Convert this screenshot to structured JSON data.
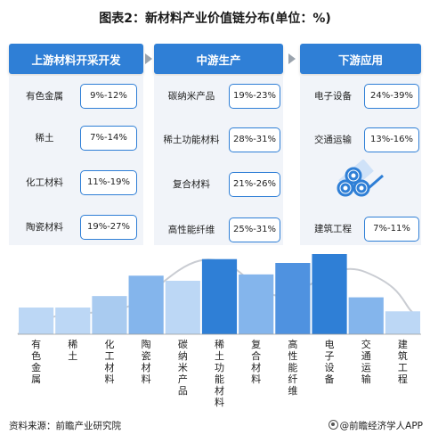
{
  "title": "图表2：新材料产业价值链分布(单位：%)",
  "stages": [
    {
      "label": "上游材料开采开发"
    },
    {
      "label": "中游生产"
    },
    {
      "label": "下游应用"
    }
  ],
  "upstream": [
    {
      "name": "有色金属",
      "value": "9%-12%"
    },
    {
      "name": "稀土",
      "value": "7%-14%"
    },
    {
      "name": "化工材料",
      "value": "11%-19%"
    },
    {
      "name": "陶瓷材料",
      "value": "19%-27%"
    }
  ],
  "midstream": [
    {
      "name": "碳纳米产品",
      "value": "19%-23%"
    },
    {
      "name": "稀土功能材料",
      "value": "28%-31%"
    },
    {
      "name": "复合材料",
      "value": "21%-26%"
    },
    {
      "name": "高性能纤维",
      "value": "25%-31%"
    }
  ],
  "downstream": [
    {
      "name": "电子设备",
      "value": "24%-39%"
    },
    {
      "name": "交通运输",
      "value": "13%-16%"
    },
    {
      "name": "建筑工程",
      "value": "7%-11%"
    }
  ],
  "chart_data": {
    "type": "bar",
    "categories": [
      "有色金属",
      "稀土",
      "化工材料",
      "陶瓷材料",
      "碳纳米产品",
      "稀土功能材料",
      "复合材料",
      "高性能纤维",
      "电子设备",
      "交通运输",
      "建筑工程"
    ],
    "values": [
      10.5,
      10.5,
      15,
      23,
      21,
      29.5,
      23.5,
      28,
      31.5,
      14.5,
      9
    ],
    "colors": [
      "#bcd7f5",
      "#bcd7f5",
      "#a9cbf0",
      "#84b5ec",
      "#bcd7f5",
      "#2f7fd6",
      "#84b5ec",
      "#4f92e0",
      "#2f7fd6",
      "#84b5ec",
      "#bcd7f5"
    ],
    "ylim": [
      0,
      31.5
    ]
  },
  "footer": {
    "source": "资料来源：前瞻产业研究院",
    "brand": "@前瞻经济学人APP"
  }
}
